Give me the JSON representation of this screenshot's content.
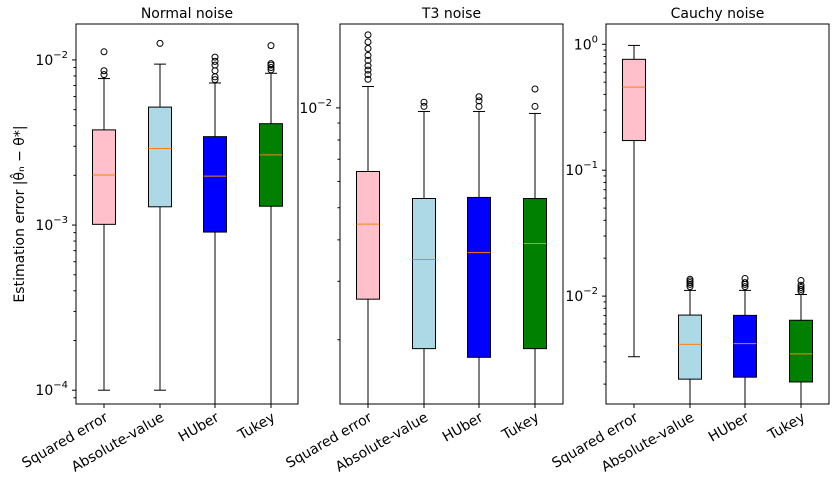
{
  "figure": {
    "ylabel": "Estimation error |θ̂ₙ − θ*|"
  },
  "chart_data": [
    {
      "type": "box",
      "title": "Normal noise",
      "yscale": "log",
      "ylim": [
        8.25e-05,
        0.0165
      ],
      "categories": [
        "Squared error",
        "Absolute-value",
        "HUber",
        "Tukey"
      ],
      "colors": [
        "#ffc0cb",
        "#add8e6",
        "#0000ff",
        "#008000"
      ],
      "yticks": [
        {
          "value": 0.0001,
          "base": "10",
          "exp": "−4"
        },
        {
          "value": 0.001,
          "base": "10",
          "exp": "−3"
        },
        {
          "value": 0.01,
          "base": "10",
          "exp": "−2"
        }
      ],
      "boxes": [
        {
          "whislo": 0.0001,
          "q1": 0.00101,
          "med": 0.00201,
          "q3": 0.00377,
          "whishi": 0.00771,
          "fliers": [
            0.00815,
            0.0086,
            0.0112
          ]
        },
        {
          "whislo": 0.0001,
          "q1": 0.00129,
          "med": 0.00291,
          "q3": 0.00518,
          "whishi": 0.00943,
          "fliers": [
            0.0126
          ]
        },
        {
          "whislo": 8.25e-05,
          "q1": 0.000907,
          "med": 0.00198,
          "q3": 0.00343,
          "whishi": 0.00725,
          "fliers": [
            0.0076,
            0.0079,
            0.0086,
            0.0093,
            0.0098,
            0.0104
          ]
        },
        {
          "whislo": 8.25e-05,
          "q1": 0.0013,
          "med": 0.00266,
          "q3": 0.00411,
          "whishi": 0.0083,
          "fliers": [
            0.0087,
            0.009,
            0.0093,
            0.0095,
            0.0122
          ]
        }
      ]
    },
    {
      "type": "box",
      "title": "T3 noise",
      "yscale": "log",
      "ylim": [
        0.00128,
        0.0179
      ],
      "categories": [
        "Squared error",
        "Absolute-value",
        "HUber",
        "Tukey"
      ],
      "colors": [
        "#ffc0cb",
        "#add8e6",
        "#0000ff",
        "#008000"
      ],
      "yticks": [
        {
          "value": 0.01,
          "base": "10",
          "exp": "−2"
        }
      ],
      "boxes": [
        {
          "whislo": 0.00128,
          "q1": 0.00265,
          "med": 0.00446,
          "q3": 0.00643,
          "whishi": 0.0116,
          "fliers": [
            0.0122,
            0.0126,
            0.013,
            0.0134,
            0.0139,
            0.0144,
            0.0151,
            0.0158,
            0.0166
          ]
        },
        {
          "whislo": 0.00128,
          "q1": 0.00188,
          "med": 0.00349,
          "q3": 0.00533,
          "whishi": 0.00975,
          "fliers": [
            0.0101,
            0.0104
          ]
        },
        {
          "whislo": 0.00128,
          "q1": 0.00177,
          "med": 0.00366,
          "q3": 0.00537,
          "whishi": 0.00975,
          "fliers": [
            0.0101,
            0.0105,
            0.0108
          ]
        },
        {
          "whislo": 0.00128,
          "q1": 0.00188,
          "med": 0.0039,
          "q3": 0.00533,
          "whishi": 0.00962,
          "fliers": [
            0.0101,
            0.0114
          ]
        }
      ]
    },
    {
      "type": "box",
      "title": "Cauchy noise",
      "yscale": "log",
      "ylim": [
        0.00139,
        1.45
      ],
      "categories": [
        "Squared error",
        "Absolute-value",
        "HUber",
        "Tukey"
      ],
      "colors": [
        "#ffc0cb",
        "#add8e6",
        "#0000ff",
        "#008000"
      ],
      "yticks": [
        {
          "value": 0.01,
          "base": "10",
          "exp": "−2"
        },
        {
          "value": 0.1,
          "base": "10",
          "exp": "−1"
        },
        {
          "value": 1,
          "base": "10",
          "exp": "0"
        }
      ],
      "boxes": [
        {
          "whislo": 0.0033,
          "q1": 0.172,
          "med": 0.457,
          "q3": 0.76,
          "whishi": 0.98,
          "fliers": []
        },
        {
          "whislo": 0.00139,
          "q1": 0.00219,
          "med": 0.00414,
          "q3": 0.00707,
          "whishi": 0.0111,
          "fliers": [
            0.0119,
            0.0124,
            0.0128,
            0.0132,
            0.0136
          ]
        },
        {
          "whislo": 0.00139,
          "q1": 0.00227,
          "med": 0.00419,
          "q3": 0.00703,
          "whishi": 0.0111,
          "fliers": [
            0.0119,
            0.0124,
            0.0128,
            0.0138
          ]
        },
        {
          "whislo": 0.00139,
          "q1": 0.00208,
          "med": 0.00348,
          "q3": 0.00643,
          "whishi": 0.0103,
          "fliers": [
            0.0109,
            0.0113,
            0.0117,
            0.0122,
            0.0133
          ]
        }
      ]
    }
  ]
}
